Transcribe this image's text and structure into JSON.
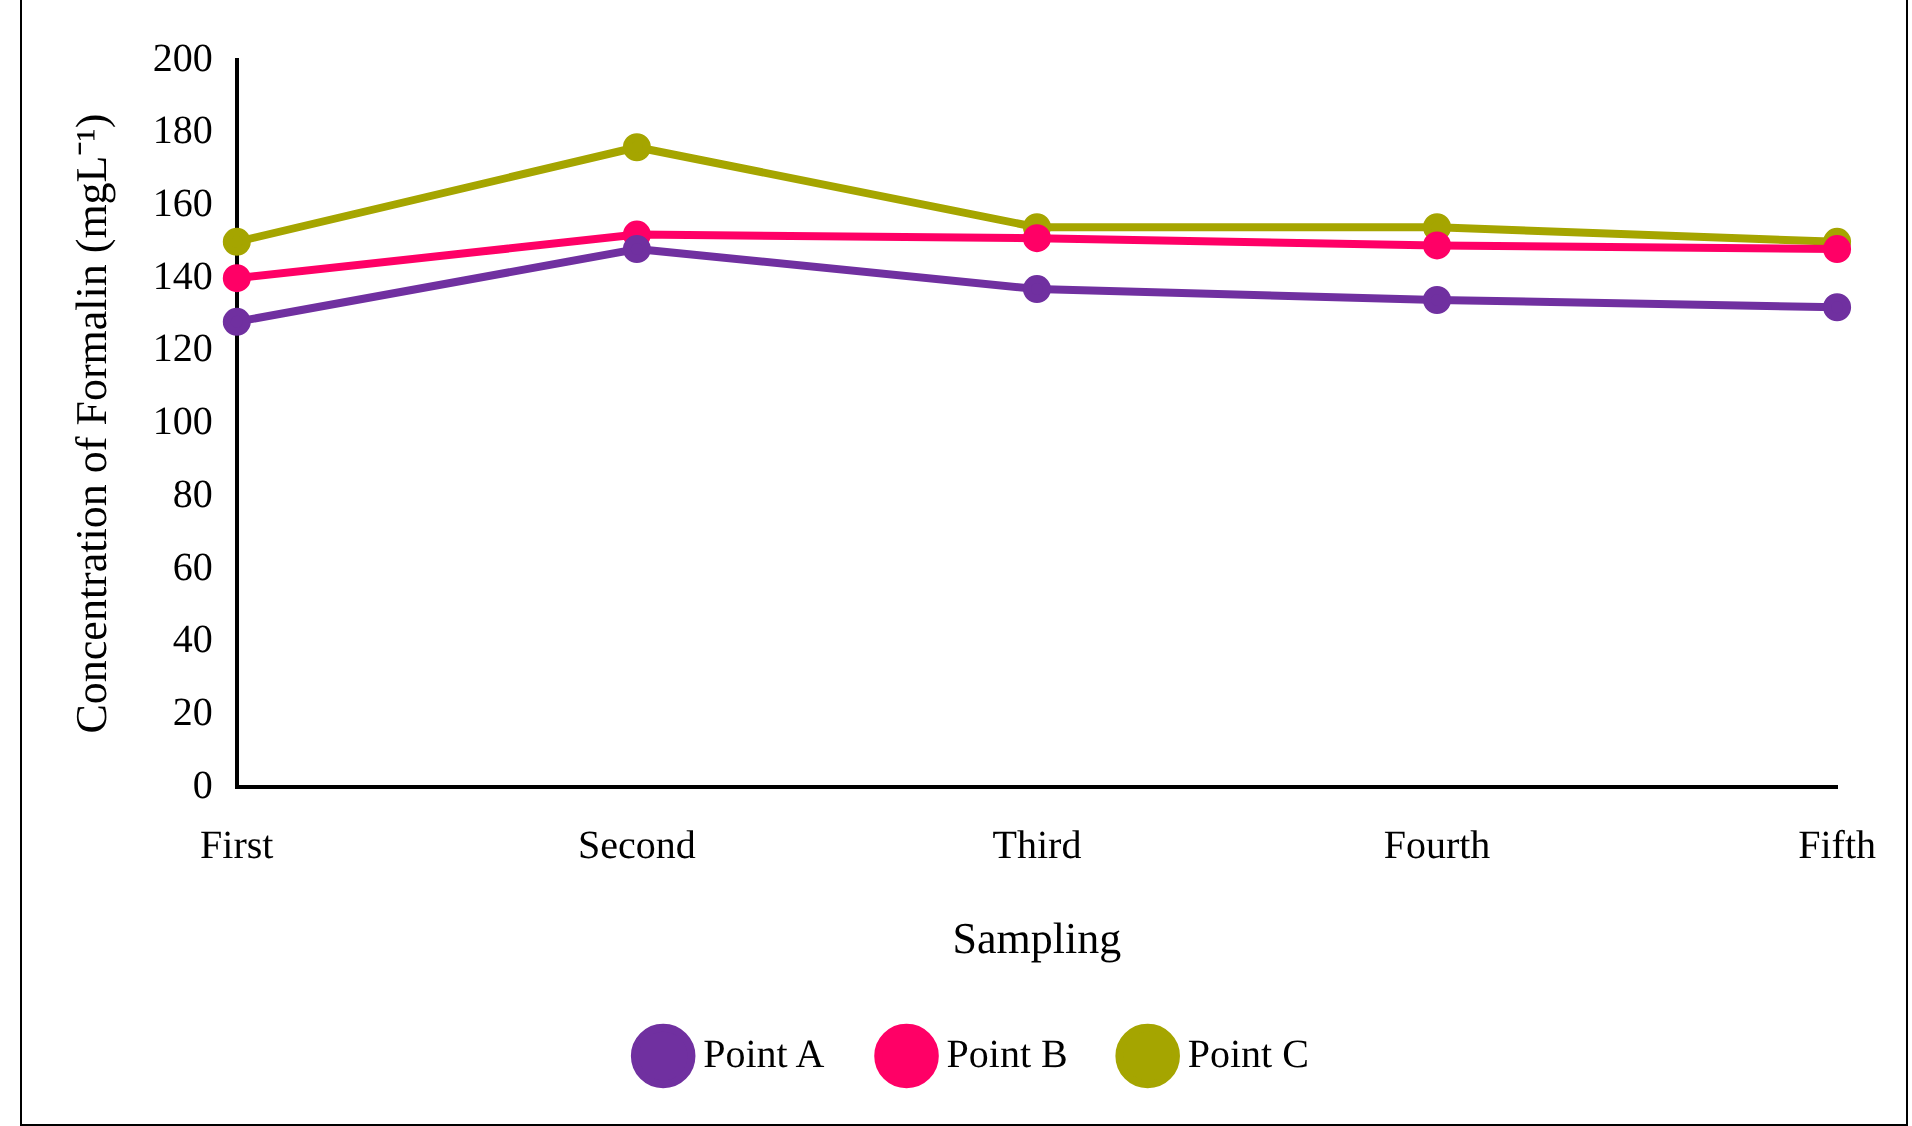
{
  "chart_data": {
    "type": "line",
    "xlabel": "Sampling",
    "ylabel": "Concentration of Formalin (mgL⁻¹)",
    "categories": [
      "First",
      "Second",
      "Third",
      "Fourth",
      "Fifth"
    ],
    "series": [
      {
        "name": "Point A",
        "color": "#7030a0",
        "values": [
          128,
          148,
          137,
          134,
          132
        ]
      },
      {
        "name": "Point B",
        "color": "#ff0066",
        "values": [
          140,
          152,
          151,
          149,
          148
        ]
      },
      {
        "name": "Point C",
        "color": "#a5a500",
        "values": [
          150,
          176,
          154,
          154,
          150
        ]
      }
    ],
    "ylim": [
      0,
      200
    ],
    "yticks": [
      0,
      20,
      40,
      60,
      80,
      100,
      120,
      140,
      160,
      180,
      200
    ],
    "grid": false,
    "legend": "bottom",
    "marker": "circle",
    "line_style": "solid"
  }
}
